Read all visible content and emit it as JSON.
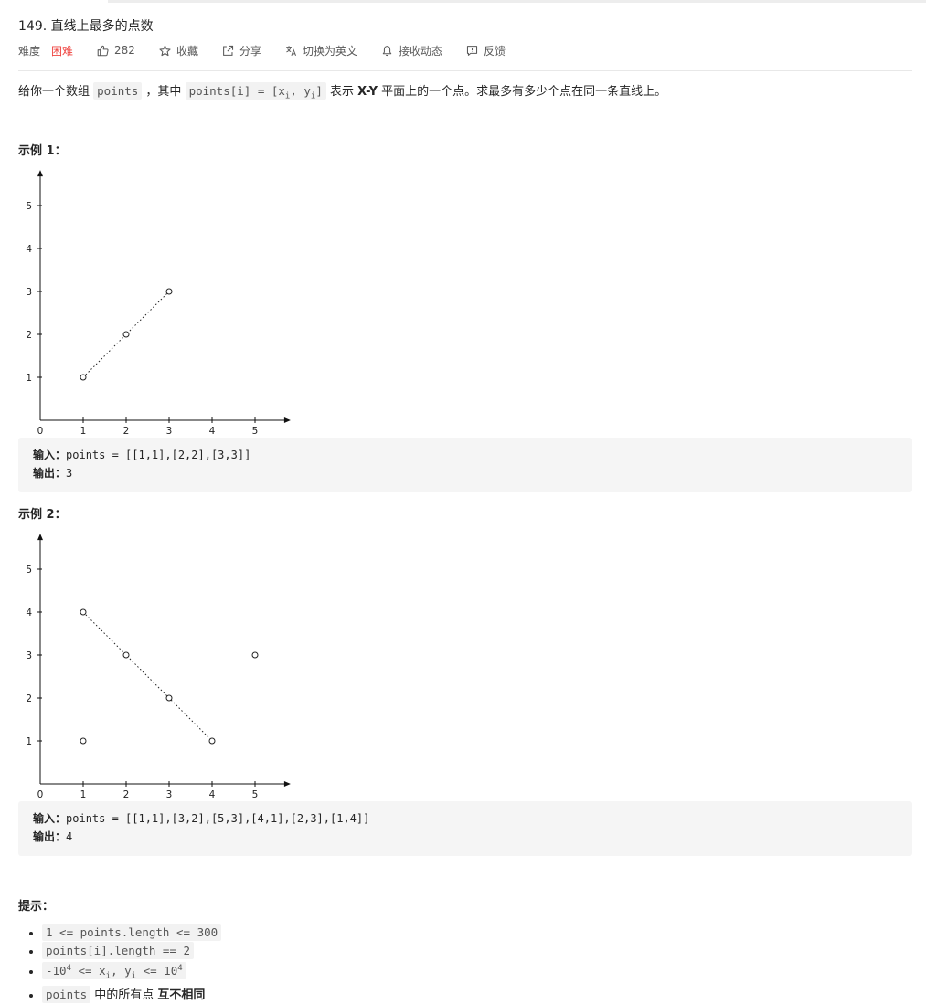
{
  "problem": {
    "title": "149. 直线上最多的点数",
    "difficulty_label": "难度",
    "difficulty_value": "困难",
    "likes": "282",
    "collect_label": "收藏",
    "share_label": "分享",
    "switch_lang_label": "切换为英文",
    "subscribe_label": "接收动态",
    "feedback_label": "反馈"
  },
  "description": {
    "p1": "给你一个数组 ",
    "code1": "points",
    "p2": " ，其中 ",
    "code2a": "points[i] = [x",
    "sub_i1": "i",
    "code2b": ", y",
    "sub_i2": "i",
    "code2c": "]",
    "p3": " 表示 ",
    "strong1": "X-Y",
    "p4": " 平面上的一个点。求最多有多少个点在同一条直线上。"
  },
  "examples": [
    {
      "heading": "示例 1：",
      "input_label": "输入：",
      "input_value": "points = [[1,1],[2,2],[3,3]]",
      "output_label": "输出：",
      "output_value": "3"
    },
    {
      "heading": "示例 2：",
      "input_label": "输入：",
      "input_value": "points = [[1,1],[3,2],[5,3],[4,1],[2,3],[1,4]]",
      "output_label": "输出：",
      "output_value": "4"
    }
  ],
  "chart_data": [
    {
      "type": "scatter",
      "x_ticks": [
        "0",
        "1",
        "2",
        "3",
        "4",
        "5"
      ],
      "y_ticks": [
        "1",
        "2",
        "3",
        "4",
        "5"
      ],
      "xlim": [
        0,
        5.7
      ],
      "ylim": [
        0,
        5.7
      ],
      "points": [
        [
          1,
          1
        ],
        [
          2,
          2
        ],
        [
          3,
          3
        ]
      ],
      "line": [
        [
          1,
          1
        ],
        [
          3,
          3
        ]
      ]
    },
    {
      "type": "scatter",
      "x_ticks": [
        "0",
        "1",
        "2",
        "3",
        "4",
        "5"
      ],
      "y_ticks": [
        "1",
        "2",
        "3",
        "4",
        "5"
      ],
      "xlim": [
        0,
        5.7
      ],
      "ylim": [
        0,
        5.7
      ],
      "points": [
        [
          1,
          1
        ],
        [
          3,
          2
        ],
        [
          5,
          3
        ],
        [
          4,
          1
        ],
        [
          2,
          3
        ],
        [
          1,
          4
        ]
      ],
      "line": [
        [
          1,
          4
        ],
        [
          4,
          1
        ]
      ]
    }
  ],
  "hints": {
    "heading": "提示：",
    "h1": "1 <= points.length <= 300",
    "h2": "points[i].length == 2",
    "h3a": "-10",
    "h3_sup1": "4",
    "h3b": " <= x",
    "h3_sub1": "i",
    "h3c": ", y",
    "h3_sub2": "i",
    "h3d": " <= 10",
    "h3_sup2": "4",
    "h4_code": "points",
    "h4_text": " 中的所有点 ",
    "h4_strong": "互不相同"
  },
  "colors": {
    "hard": "#ef4743",
    "code_bg": "#f2f2f2",
    "pre_bg": "#f5f5f5"
  }
}
